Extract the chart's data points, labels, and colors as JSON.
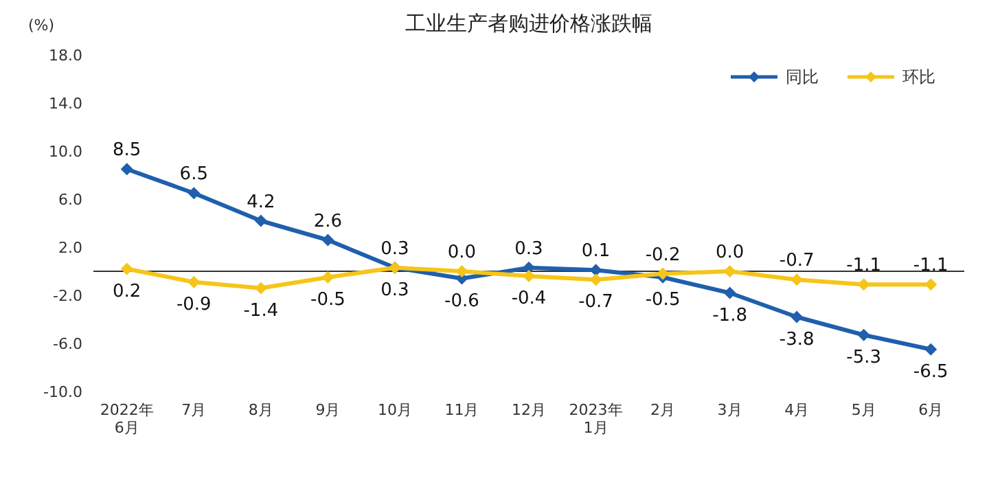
{
  "chart_data": {
    "type": "line",
    "title": "工业生产者购进价格涨跌幅",
    "ylabel": "(%)",
    "categories": [
      "2022年\n6月",
      "7月",
      "8月",
      "9月",
      "10月",
      "11月",
      "12月",
      "2023年\n1月",
      "2月",
      "3月",
      "4月",
      "5月",
      "6月"
    ],
    "series": [
      {
        "name": "同比",
        "color": "#1f5fad",
        "values": [
          8.5,
          6.5,
          4.2,
          2.6,
          0.3,
          -0.6,
          0.3,
          0.1,
          -0.5,
          -1.8,
          -3.8,
          -5.3,
          -6.5
        ],
        "value_labels": [
          "8.5",
          "6.5",
          "4.2",
          "2.6",
          "0.3",
          "-0.6",
          "0.3",
          "0.1",
          "-0.5",
          "-1.8",
          "-3.8",
          "-5.3",
          "-6.5"
        ]
      },
      {
        "name": "环比",
        "color": "#f5c518",
        "values": [
          0.2,
          -0.9,
          -1.4,
          -0.5,
          0.3,
          0.0,
          -0.4,
          -0.7,
          -0.2,
          0.0,
          -0.7,
          -1.1,
          -1.1
        ],
        "value_labels": [
          "0.2",
          "-0.9",
          "-1.4",
          "-0.5",
          "0.3",
          "0.0",
          "-0.4",
          "-0.7",
          "-0.2",
          "0.0",
          "-0.7",
          "-1.1",
          "-1.1"
        ]
      }
    ],
    "ylim": [
      -10,
      18
    ],
    "yticks": [
      {
        "value": 18,
        "label": "18.0"
      },
      {
        "value": 14,
        "label": "14.0"
      },
      {
        "value": 10,
        "label": "10.0"
      },
      {
        "value": 6,
        "label": "6.0"
      },
      {
        "value": 2,
        "label": "2.0"
      },
      {
        "value": -2,
        "label": "-2.0"
      },
      {
        "value": -6,
        "label": "-6.0"
      },
      {
        "value": -10,
        "label": "-10.0"
      }
    ],
    "ref_lines": [
      {
        "axis": "y",
        "value": 0,
        "color": "#333333"
      }
    ],
    "legend": "top right",
    "marker": "diamond",
    "line_style": "solid",
    "grid": false
  }
}
